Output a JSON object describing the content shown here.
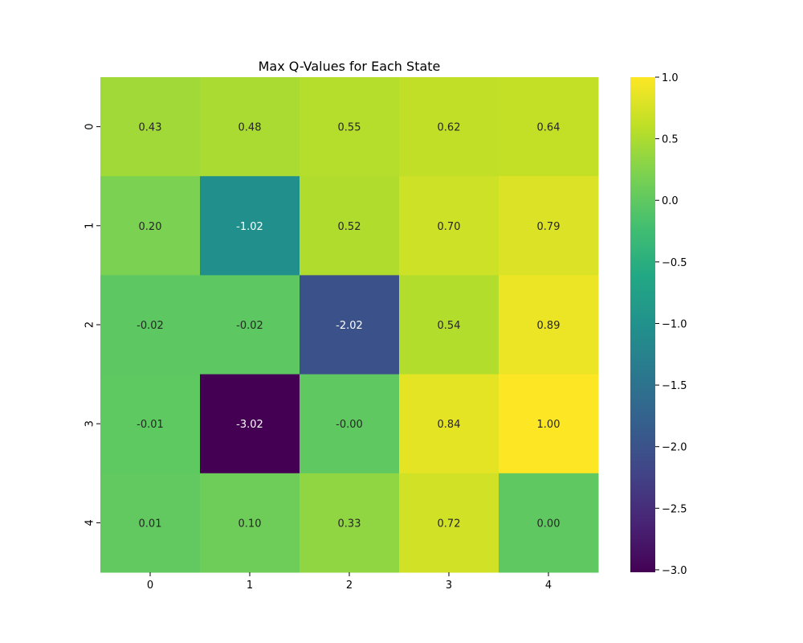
{
  "chart_data": {
    "type": "heatmap",
    "title": "Max Q-Values for Each State",
    "xlabel": "",
    "ylabel": "",
    "x_categories": [
      "0",
      "1",
      "2",
      "3",
      "4"
    ],
    "y_categories": [
      "0",
      "1",
      "2",
      "3",
      "4"
    ],
    "values": [
      [
        0.43,
        0.48,
        0.55,
        0.62,
        0.64
      ],
      [
        0.2,
        -1.02,
        0.52,
        0.7,
        0.79
      ],
      [
        -0.02,
        -0.02,
        -2.02,
        0.54,
        0.89
      ],
      [
        -0.01,
        -3.02,
        -0.0,
        0.84,
        1.0
      ],
      [
        0.01,
        0.1,
        0.33,
        0.72,
        0.0
      ]
    ],
    "annotations": [
      [
        "0.43",
        "0.48",
        "0.55",
        "0.62",
        "0.64"
      ],
      [
        "0.20",
        "-1.02",
        "0.52",
        "0.70",
        "0.79"
      ],
      [
        "-0.02",
        "-0.02",
        "-2.02",
        "0.54",
        "0.89"
      ],
      [
        "-0.01",
        "-3.02",
        "-0.00",
        "0.84",
        "1.00"
      ],
      [
        "0.01",
        "0.10",
        "0.33",
        "0.72",
        "0.00"
      ]
    ],
    "colormap": "viridis",
    "vmin": -3.02,
    "vmax": 1.0,
    "colorbar": {
      "ticks": [
        1.0,
        0.5,
        0.0,
        -0.5,
        -1.0,
        -1.5,
        -2.0,
        -2.5,
        -3.0
      ],
      "tick_labels": [
        "1.0",
        "0.5",
        "0.0",
        "−0.5",
        "−1.0",
        "−1.5",
        "−2.0",
        "−2.5",
        "−3.0"
      ]
    },
    "grid": false
  }
}
